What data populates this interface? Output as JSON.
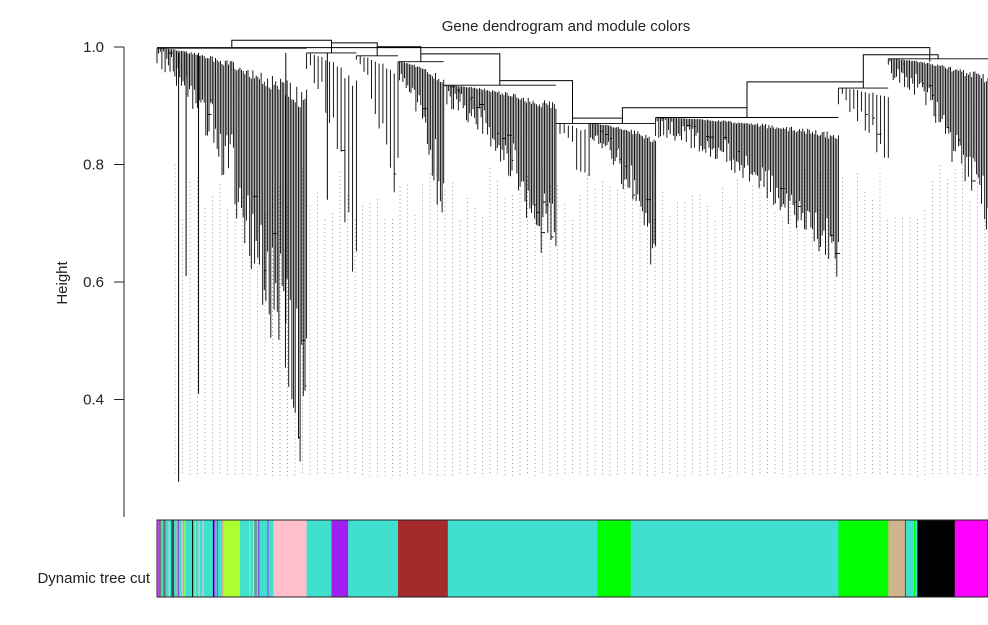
{
  "chart_data": {
    "type": "dendrogram",
    "title": "Gene dendrogram and module colors",
    "ylabel": "Height",
    "xlabel": "",
    "yticks": [
      0.4,
      0.6,
      0.8,
      1.0
    ],
    "ytick_labels": [
      "0.4",
      "0.6",
      "0.8",
      "1.0"
    ],
    "ylim": [
      0.2,
      1.0
    ],
    "color_bar_label": "Dynamic tree cut",
    "clusters": [
      {
        "start": 0.0,
        "end": 0.18,
        "root": 0.998,
        "min": 0.26,
        "dense": true
      },
      {
        "start": 0.18,
        "end": 0.24,
        "root": 0.99,
        "min": 0.53
      },
      {
        "start": 0.24,
        "end": 0.29,
        "root": 0.985,
        "min": 0.73
      },
      {
        "start": 0.29,
        "end": 0.345,
        "root": 0.975,
        "min": 0.69,
        "dense": true
      },
      {
        "start": 0.345,
        "end": 0.48,
        "root": 0.935,
        "min": 0.61,
        "dense": true
      },
      {
        "start": 0.48,
        "end": 0.52,
        "root": 0.87,
        "min": 0.74
      },
      {
        "start": 0.52,
        "end": 0.6,
        "root": 0.87,
        "min": 0.63,
        "dense": true
      },
      {
        "start": 0.6,
        "end": 0.82,
        "root": 0.88,
        "min": 0.61,
        "dense": true
      },
      {
        "start": 0.82,
        "end": 0.88,
        "root": 0.93,
        "min": 0.79
      },
      {
        "start": 0.88,
        "end": 1.0,
        "root": 0.98,
        "min": 0.68,
        "dense": true
      }
    ],
    "modules": [
      {
        "color": "#40e0d0",
        "start": 0.0,
        "end": 0.08,
        "mixed": true
      },
      {
        "color": "#adff2f",
        "start": 0.08,
        "end": 0.1
      },
      {
        "color": "#40e0d0",
        "start": 0.1,
        "end": 0.14,
        "mixed": true
      },
      {
        "color": "#ffc0cb",
        "start": 0.14,
        "end": 0.18
      },
      {
        "color": "#40e0d0",
        "start": 0.18,
        "end": 0.21
      },
      {
        "color": "#a020f0",
        "start": 0.21,
        "end": 0.23
      },
      {
        "color": "#40e0d0",
        "start": 0.23,
        "end": 0.29
      },
      {
        "color": "#a52a2a",
        "start": 0.29,
        "end": 0.35
      },
      {
        "color": "#40e0d0",
        "start": 0.35,
        "end": 0.53
      },
      {
        "color": "#00ff00",
        "start": 0.53,
        "end": 0.57
      },
      {
        "color": "#40e0d0",
        "start": 0.57,
        "end": 0.82
      },
      {
        "color": "#00ff00",
        "start": 0.82,
        "end": 0.88
      },
      {
        "color": "#d2b48c",
        "start": 0.88,
        "end": 0.9
      },
      {
        "color": "#40e0d0",
        "start": 0.9,
        "end": 0.915,
        "mixed": true
      },
      {
        "color": "#000000",
        "start": 0.915,
        "end": 0.96
      },
      {
        "color": "#ff00ff",
        "start": 0.96,
        "end": 1.0
      }
    ]
  }
}
